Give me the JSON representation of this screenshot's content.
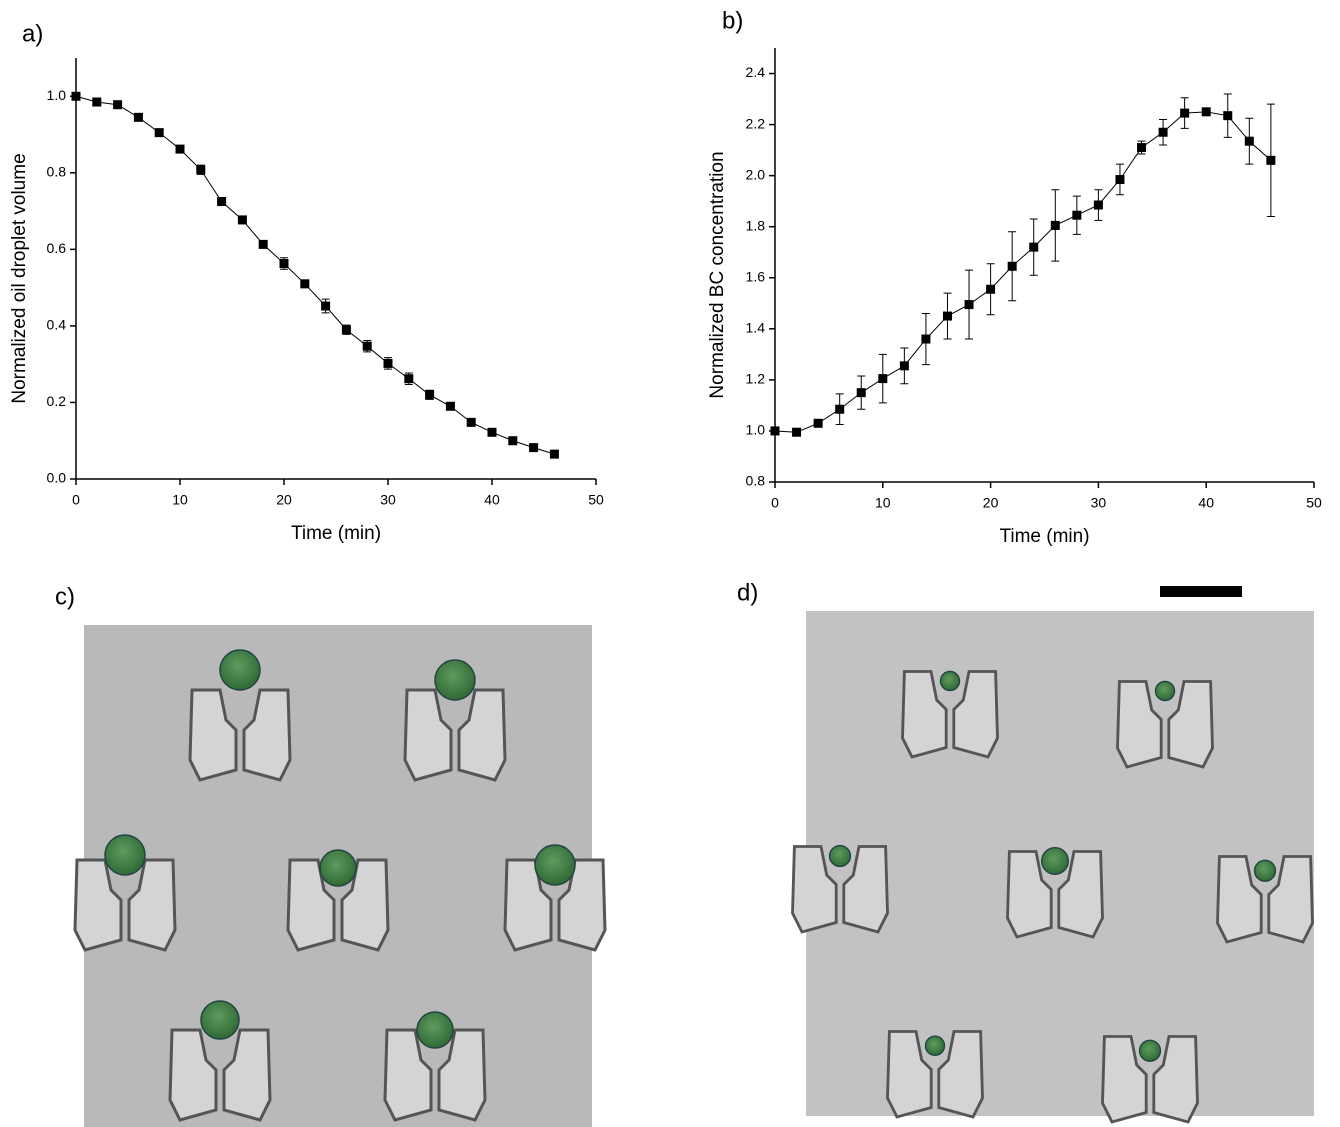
{
  "chart_data": [
    {
      "type": "line",
      "panel_label": "a)",
      "x_label": "Time (min)",
      "y_label": "Normalized oil droplet volume",
      "x": [
        0,
        2,
        4,
        6,
        8,
        10,
        12,
        14,
        16,
        18,
        20,
        22,
        24,
        26,
        28,
        30,
        32,
        34,
        36,
        38,
        40,
        42,
        44,
        46
      ],
      "series": [
        {
          "color": "#000000",
          "values": [
            1.0,
            0.985,
            0.978,
            0.945,
            0.905,
            0.862,
            0.808,
            0.725,
            0.677,
            0.613,
            0.563,
            0.51,
            0.452,
            0.39,
            0.347,
            0.302,
            0.262,
            0.22,
            0.19,
            0.148,
            0.122,
            0.1,
            0.082,
            0.065
          ],
          "errors": [
            0.004,
            0.004,
            0.004,
            0.004,
            0.006,
            0.006,
            0.012,
            0.006,
            0.01,
            0.006,
            0.015,
            0.01,
            0.018,
            0.012,
            0.015,
            0.015,
            0.015,
            0.012,
            0.006,
            0.006,
            0.006,
            0.006,
            0.006,
            0.006
          ]
        }
      ],
      "xlim": [
        0,
        50
      ],
      "xticks": [
        0,
        10,
        20,
        30,
        40,
        50
      ],
      "ylim": [
        0,
        1.1
      ],
      "yticks": [
        {
          "value": 0,
          "label": "0.0"
        },
        {
          "value": 0.2,
          "label": "0.2"
        },
        {
          "value": 0.4,
          "label": "0.4"
        },
        {
          "value": 0.6,
          "label": "0.6"
        },
        {
          "value": 0.8,
          "label": "0.8"
        },
        {
          "value": 1,
          "label": "1.0"
        }
      ]
    },
    {
      "type": "line",
      "panel_label": "b)",
      "x_label": "Time (min)",
      "y_label": "Normalized BC concentration",
      "x": [
        0,
        2,
        4,
        6,
        8,
        10,
        12,
        14,
        16,
        18,
        20,
        22,
        24,
        26,
        28,
        30,
        32,
        34,
        36,
        38,
        40,
        42,
        44,
        46
      ],
      "series": [
        {
          "color": "#000000",
          "values": [
            1.0,
            0.995,
            1.03,
            1.085,
            1.15,
            1.205,
            1.255,
            1.36,
            1.45,
            1.495,
            1.555,
            1.645,
            1.72,
            1.805,
            1.845,
            1.885,
            1.985,
            2.11,
            2.17,
            2.245,
            2.25,
            2.235,
            2.135,
            2.06
          ],
          "errors": [
            0.01,
            0.01,
            0.01,
            0.06,
            0.065,
            0.095,
            0.07,
            0.1,
            0.09,
            0.135,
            0.1,
            0.135,
            0.11,
            0.14,
            0.075,
            0.06,
            0.06,
            0.025,
            0.05,
            0.06,
            0.01,
            0.085,
            0.09,
            0.22
          ]
        }
      ],
      "xlim": [
        0,
        50
      ],
      "xticks": [
        0,
        10,
        20,
        30,
        40,
        50
      ],
      "ylim": [
        0.8,
        2.5
      ],
      "yticks": [
        {
          "value": 0.8,
          "label": "0.8"
        },
        {
          "value": 1,
          "label": "1.0"
        },
        {
          "value": 1.2,
          "label": "1.2"
        },
        {
          "value": 1.4,
          "label": "1.4"
        },
        {
          "value": 1.6,
          "label": "1.6"
        },
        {
          "value": 1.8,
          "label": "1.8"
        },
        {
          "value": 2,
          "label": "2.0"
        },
        {
          "value": 2.2,
          "label": "2.2"
        },
        {
          "value": 2.4,
          "label": "2.4"
        }
      ]
    }
  ],
  "panels": [
    {
      "label": "c)"
    },
    {
      "label": "d)"
    }
  ]
}
